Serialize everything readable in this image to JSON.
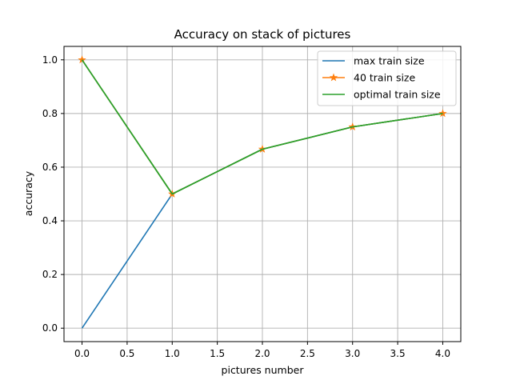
{
  "chart_data": {
    "type": "line",
    "title": "Accuracy on stack of pictures",
    "xlabel": "pictures number",
    "ylabel": "accuracy",
    "xlim": [
      -0.2,
      4.2
    ],
    "ylim": [
      -0.05,
      1.05
    ],
    "xticks": [
      0.0,
      0.5,
      1.0,
      1.5,
      2.0,
      2.5,
      3.0,
      3.5,
      4.0
    ],
    "xtick_labels": [
      "0.0",
      "0.5",
      "1.0",
      "1.5",
      "2.0",
      "2.5",
      "3.0",
      "3.5",
      "4.0"
    ],
    "yticks": [
      0.0,
      0.2,
      0.4,
      0.6,
      0.8,
      1.0
    ],
    "ytick_labels": [
      "0.0",
      "0.2",
      "0.4",
      "0.6",
      "0.8",
      "1.0"
    ],
    "grid": true,
    "legend_position": "top-right",
    "x": [
      0,
      1,
      2,
      3,
      4
    ],
    "series": [
      {
        "name": "max train size",
        "values": [
          0.0,
          0.5,
          0.667,
          0.75,
          0.8
        ],
        "color": "#1f77b4",
        "marker": "none"
      },
      {
        "name": "40 train size",
        "values": [
          1.0,
          0.5,
          0.667,
          0.75,
          0.8
        ],
        "color": "#ff7f0e",
        "marker": "star"
      },
      {
        "name": "optimal train size",
        "values": [
          1.0,
          0.5,
          0.667,
          0.75,
          0.8
        ],
        "color": "#2ca02c",
        "marker": "none"
      }
    ]
  }
}
